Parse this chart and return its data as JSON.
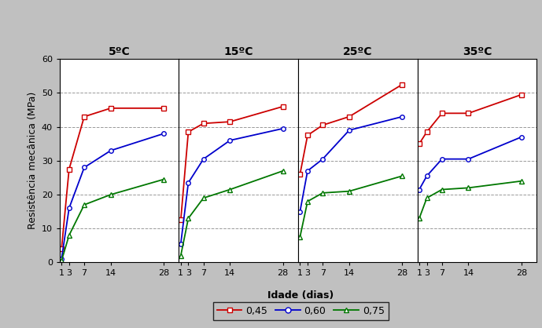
{
  "panels": [
    {
      "title": "5ºC",
      "x": [
        1,
        3,
        7,
        14,
        28
      ],
      "red": [
        4,
        27.5,
        43,
        45.5,
        45.5
      ],
      "blue": [
        1,
        16,
        28,
        33,
        38
      ],
      "green": [
        0.5,
        8,
        17,
        20,
        24.5
      ]
    },
    {
      "title": "15ºC",
      "x": [
        1,
        3,
        7,
        14,
        28
      ],
      "red": [
        12.5,
        38.5,
        41,
        41.5,
        46
      ],
      "blue": [
        5.5,
        23.5,
        30.5,
        36,
        39.5
      ],
      "green": [
        2,
        13,
        19,
        21.5,
        27
      ]
    },
    {
      "title": "25ºC",
      "x": [
        1,
        3,
        7,
        14,
        28
      ],
      "red": [
        26,
        37.5,
        40.5,
        43,
        52.5
      ],
      "blue": [
        15,
        27,
        30.5,
        39,
        43
      ],
      "green": [
        7.5,
        18,
        20.5,
        21,
        25.5
      ]
    },
    {
      "title": "35ºC",
      "x": [
        1,
        3,
        7,
        14,
        28
      ],
      "red": [
        35,
        38.5,
        44,
        44,
        49.5
      ],
      "blue": [
        21.5,
        25.5,
        30.5,
        30.5,
        37
      ],
      "green": [
        13,
        19,
        21.5,
        22,
        24
      ]
    }
  ],
  "ylabel": "Resistência mecânica (MPa)",
  "xlabel": "Idade (dias)",
  "ylim": [
    0,
    60
  ],
  "yticks": [
    0,
    10,
    20,
    30,
    40,
    50,
    60
  ],
  "xticks": [
    1,
    3,
    7,
    14,
    28
  ],
  "red_label": "0,45",
  "blue_label": "0,60",
  "green_label": "0,75",
  "red_color": "#cc0000",
  "blue_color": "#0000cc",
  "green_color": "#007700",
  "background_color": "#c0c0c0",
  "plot_bg_color": "#ffffff",
  "title_fontsize": 10,
  "label_fontsize": 9,
  "tick_fontsize": 8,
  "legend_fontsize": 9
}
